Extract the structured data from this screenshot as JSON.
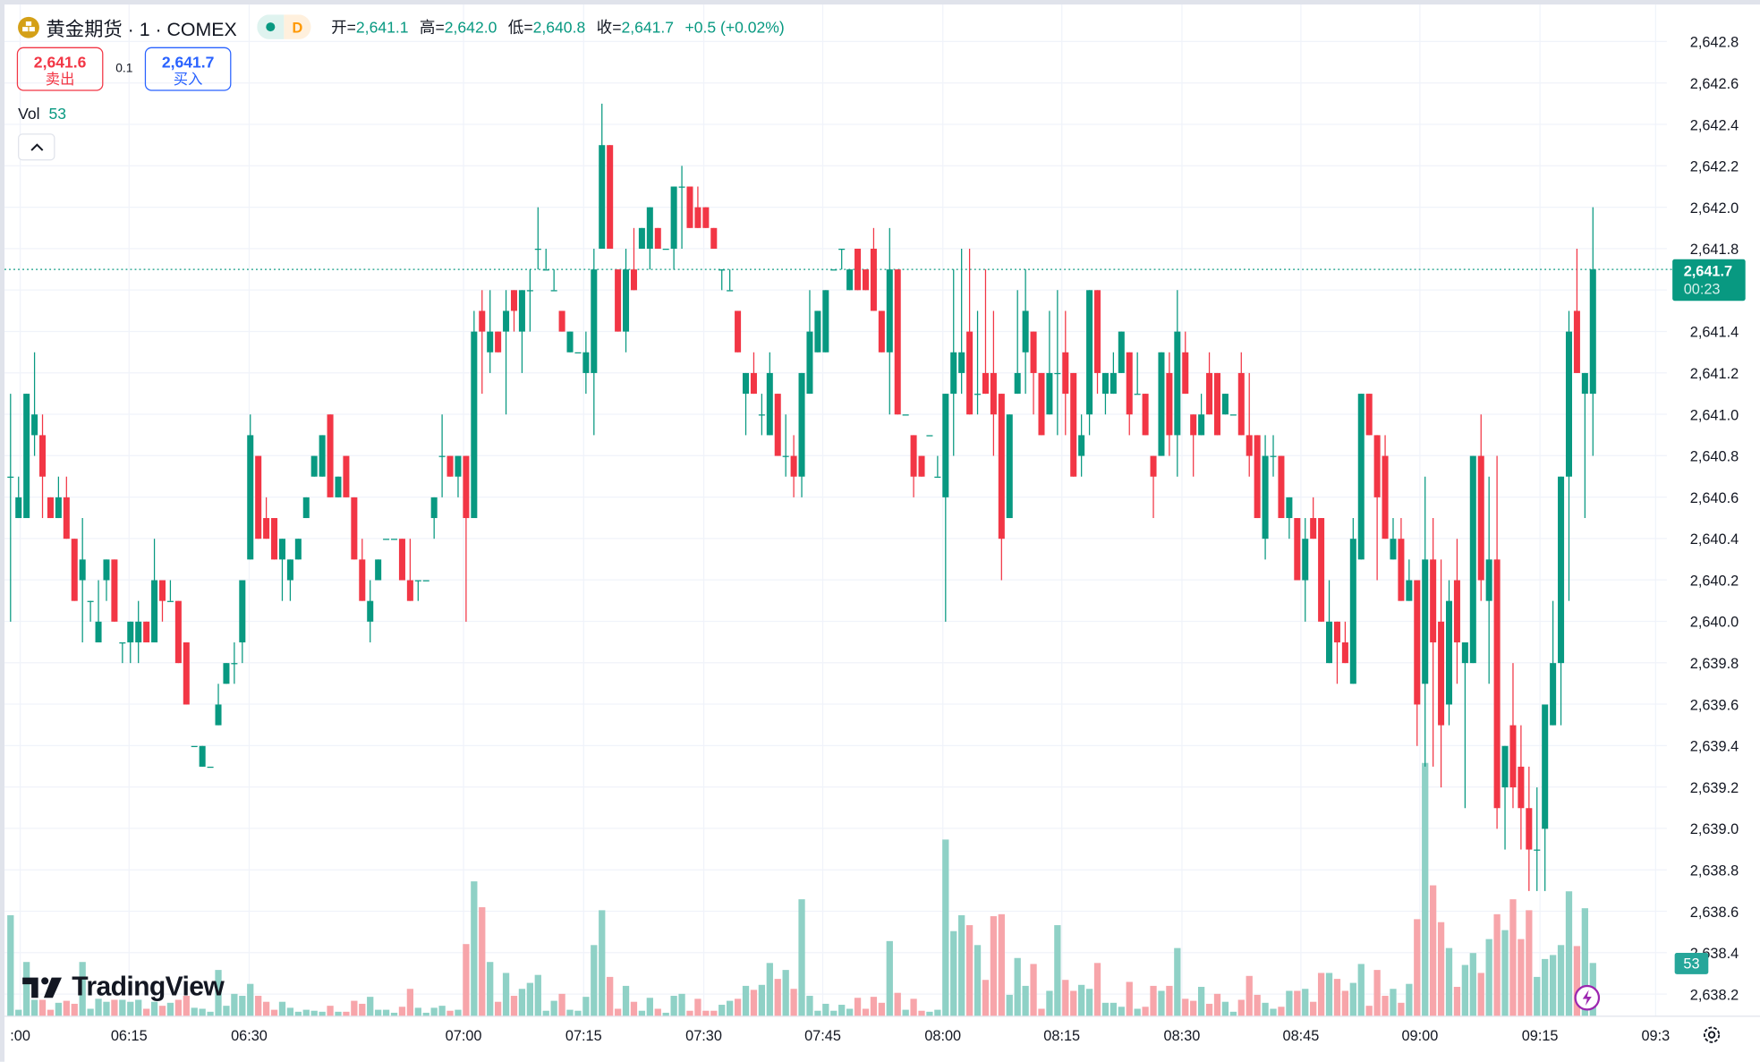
{
  "header": {
    "symbol": "黄金期货 · 1 · COMEX",
    "interval_badge": "D",
    "ohlc": {
      "open_label": "开=",
      "open": "2,641.1",
      "high_label": "高=",
      "high": "2,642.0",
      "low_label": "低=",
      "low": "2,640.8",
      "close_label": "收=",
      "close": "2,641.7",
      "change": "+0.5 (+0.02%)"
    }
  },
  "trade": {
    "sell_price": "2,641.6",
    "sell_label": "卖出",
    "spread": "0.1",
    "buy_price": "2,641.7",
    "buy_label": "买入"
  },
  "volume_legend": {
    "label": "Vol",
    "value": "53"
  },
  "logo_text": "TradingView",
  "price_badge": {
    "price": "2,641.7",
    "countdown": "00:23"
  },
  "volume_badge": "53",
  "icons": {
    "logo": "gold-bars-icon",
    "collapse": "chevron-up-icon",
    "settings": "gear-icon",
    "alert": "lightning-icon"
  },
  "colors": {
    "up": "#089981",
    "down": "#f23645",
    "up_volume": "#8fd1c6",
    "down_volume": "#f7a5aa",
    "sell": "#f23645",
    "buy": "#2962ff"
  },
  "chart_data": {
    "type": "candlestick",
    "interval": "1 minute",
    "ylim": [
      2638.1,
      2642.9
    ],
    "y_ticks": [
      "2,642.8",
      "2,642.6",
      "2,642.4",
      "2,642.2",
      "2,642.0",
      "2,641.8",
      "2,641.6",
      "2,641.4",
      "2,641.2",
      "2,641.0",
      "2,640.8",
      "2,640.6",
      "2,640.4",
      "2,640.2",
      "2,640.0",
      "2,639.8",
      "2,639.6",
      "2,639.4",
      "2,639.2",
      "2,639.0",
      "2,638.8",
      "2,638.6",
      "2,638.4",
      "2,638.2"
    ],
    "x_ticks": [
      ":00",
      "06:15",
      "06:30",
      "07:00",
      "07:15",
      "07:30",
      "07:45",
      "08:00",
      "08:15",
      "08:30",
      "08:45",
      "09:00",
      "09:15",
      "09:3"
    ],
    "last_price": 2641.7,
    "grid": true,
    "ohlc_fields": [
      "open",
      "high",
      "low",
      "close"
    ],
    "candles": [
      [
        2640.7,
        2641.1,
        2640.0,
        2640.7
      ],
      [
        2640.5,
        2640.7,
        2640.5,
        2640.6
      ],
      [
        2640.5,
        2641.1,
        2640.5,
        2641.1
      ],
      [
        2640.9,
        2641.3,
        2640.8,
        2641.0
      ],
      [
        2640.9,
        2641.0,
        2640.5,
        2640.7
      ],
      [
        2640.6,
        2640.6,
        2640.5,
        2640.5
      ],
      [
        2640.5,
        2640.7,
        2640.5,
        2640.6
      ],
      [
        2640.6,
        2640.7,
        2640.4,
        2640.4
      ],
      [
        2640.4,
        2640.4,
        2640.1,
        2640.1
      ],
      [
        2640.2,
        2640.5,
        2639.9,
        2640.3
      ],
      [
        2640.1,
        2640.1,
        2640.0,
        2640.1
      ],
      [
        2639.9,
        2640.2,
        2639.9,
        2640.0
      ],
      [
        2640.2,
        2640.3,
        2640.1,
        2640.3
      ],
      [
        2640.3,
        2640.3,
        2640.0,
        2640.0
      ],
      [
        2639.9,
        2639.9,
        2639.8,
        2639.9
      ],
      [
        2639.9,
        2640.0,
        2639.8,
        2640.0
      ],
      [
        2639.9,
        2640.1,
        2639.8,
        2640.0
      ],
      [
        2640.0,
        2640.0,
        2639.9,
        2639.9
      ],
      [
        2639.9,
        2640.4,
        2639.9,
        2640.2
      ],
      [
        2640.2,
        2640.2,
        2640.0,
        2640.1
      ],
      [
        2640.1,
        2640.2,
        2640.1,
        2640.1
      ],
      [
        2640.1,
        2640.1,
        2639.8,
        2639.8
      ],
      [
        2639.9,
        2639.9,
        2639.6,
        2639.6
      ],
      [
        2639.4,
        2639.4,
        2639.4,
        2639.4
      ],
      [
        2639.3,
        2639.4,
        2639.3,
        2639.4
      ],
      [
        2639.3,
        2639.3,
        2639.3,
        2639.3
      ],
      [
        2639.5,
        2639.7,
        2639.5,
        2639.6
      ],
      [
        2639.7,
        2639.8,
        2639.7,
        2639.8
      ],
      [
        2639.8,
        2639.9,
        2639.7,
        2639.8
      ],
      [
        2639.9,
        2640.2,
        2639.8,
        2640.2
      ],
      [
        2640.3,
        2641.0,
        2640.3,
        2640.9
      ],
      [
        2640.8,
        2640.8,
        2640.4,
        2640.4
      ],
      [
        2640.5,
        2640.6,
        2640.4,
        2640.4
      ],
      [
        2640.5,
        2640.5,
        2640.3,
        2640.3
      ],
      [
        2640.3,
        2640.4,
        2640.1,
        2640.4
      ],
      [
        2640.2,
        2640.3,
        2640.1,
        2640.3
      ],
      [
        2640.3,
        2640.4,
        2640.3,
        2640.4
      ],
      [
        2640.5,
        2640.6,
        2640.5,
        2640.6
      ],
      [
        2640.7,
        2640.8,
        2640.7,
        2640.8
      ],
      [
        2640.7,
        2640.9,
        2640.7,
        2640.9
      ],
      [
        2641.0,
        2641.0,
        2640.6,
        2640.6
      ],
      [
        2640.6,
        2640.7,
        2640.6,
        2640.7
      ],
      [
        2640.8,
        2640.8,
        2640.6,
        2640.6
      ],
      [
        2640.6,
        2640.6,
        2640.3,
        2640.3
      ],
      [
        2640.3,
        2640.4,
        2640.1,
        2640.1
      ],
      [
        2640.0,
        2640.2,
        2639.9,
        2640.1
      ],
      [
        2640.2,
        2640.3,
        2640.2,
        2640.3
      ],
      [
        2640.4,
        2640.4,
        2640.4,
        2640.4
      ],
      [
        2640.4,
        2640.4,
        2640.4,
        2640.4
      ],
      [
        2640.4,
        2640.4,
        2640.2,
        2640.2
      ],
      [
        2640.2,
        2640.4,
        2640.1,
        2640.1
      ],
      [
        2640.2,
        2640.2,
        2640.1,
        2640.2
      ],
      [
        2640.2,
        2640.2,
        2640.2,
        2640.2
      ],
      [
        2640.5,
        2640.6,
        2640.4,
        2640.6
      ],
      [
        2640.8,
        2641.0,
        2640.6,
        2640.8
      ],
      [
        2640.8,
        2640.8,
        2640.7,
        2640.7
      ],
      [
        2640.7,
        2640.8,
        2640.6,
        2640.8
      ],
      [
        2640.8,
        2640.8,
        2640.0,
        2640.5
      ],
      [
        2640.5,
        2641.5,
        2640.5,
        2641.4
      ],
      [
        2641.5,
        2641.6,
        2641.1,
        2641.4
      ],
      [
        2641.3,
        2641.6,
        2641.2,
        2641.4
      ],
      [
        2641.4,
        2641.4,
        2641.3,
        2641.3
      ],
      [
        2641.4,
        2641.6,
        2641.0,
        2641.5
      ],
      [
        2641.6,
        2641.6,
        2641.4,
        2641.5
      ],
      [
        2641.4,
        2641.6,
        2641.2,
        2641.6
      ],
      [
        2641.6,
        2641.7,
        2641.4,
        2641.6
      ],
      [
        2641.8,
        2642.0,
        2641.7,
        2641.8
      ],
      [
        2641.7,
        2641.8,
        2641.7,
        2641.7
      ],
      [
        2641.6,
        2641.7,
        2641.6,
        2641.6
      ],
      [
        2641.5,
        2641.5,
        2641.4,
        2641.4
      ],
      [
        2641.3,
        2641.4,
        2641.3,
        2641.4
      ],
      [
        2641.3,
        2641.3,
        2641.3,
        2641.3
      ],
      [
        2641.2,
        2641.4,
        2641.1,
        2641.3
      ],
      [
        2641.2,
        2641.8,
        2640.9,
        2641.7
      ],
      [
        2641.8,
        2642.5,
        2641.8,
        2642.3
      ],
      [
        2642.3,
        2642.3,
        2641.8,
        2641.8
      ],
      [
        2641.7,
        2641.7,
        2641.4,
        2641.4
      ],
      [
        2641.4,
        2641.8,
        2641.3,
        2641.7
      ],
      [
        2641.7,
        2641.9,
        2641.6,
        2641.6
      ],
      [
        2641.8,
        2641.9,
        2641.8,
        2641.9
      ],
      [
        2641.8,
        2642.0,
        2641.7,
        2642.0
      ],
      [
        2641.9,
        2641.9,
        2641.8,
        2641.8
      ],
      [
        2641.8,
        2641.8,
        2641.8,
        2641.8
      ],
      [
        2641.8,
        2642.1,
        2641.7,
        2642.1
      ],
      [
        2642.1,
        2642.2,
        2641.8,
        2642.1
      ],
      [
        2642.1,
        2642.1,
        2641.9,
        2641.9
      ],
      [
        2642.0,
        2642.1,
        2641.9,
        2641.9
      ],
      [
        2642.0,
        2642.0,
        2641.9,
        2641.9
      ],
      [
        2641.9,
        2641.9,
        2641.8,
        2641.8
      ],
      [
        2641.7,
        2641.7,
        2641.6,
        2641.7
      ],
      [
        2641.6,
        2641.7,
        2641.6,
        2641.6
      ],
      [
        2641.5,
        2641.5,
        2641.3,
        2641.3
      ],
      [
        2641.1,
        2641.2,
        2640.9,
        2641.2
      ],
      [
        2641.2,
        2641.3,
        2641.1,
        2641.1
      ],
      [
        2641.0,
        2641.1,
        2640.9,
        2641.0
      ],
      [
        2640.9,
        2641.3,
        2640.9,
        2641.2
      ],
      [
        2641.1,
        2641.1,
        2640.8,
        2640.8
      ],
      [
        2640.8,
        2641.0,
        2640.7,
        2640.8
      ],
      [
        2640.8,
        2640.9,
        2640.6,
        2640.7
      ],
      [
        2640.7,
        2641.2,
        2640.6,
        2641.2
      ],
      [
        2641.1,
        2641.6,
        2641.1,
        2641.4
      ],
      [
        2641.3,
        2641.5,
        2641.3,
        2641.5
      ],
      [
        2641.3,
        2641.6,
        2641.3,
        2641.6
      ],
      [
        2641.7,
        2641.7,
        2641.7,
        2641.7
      ],
      [
        2641.8,
        2641.8,
        2641.7,
        2641.8
      ],
      [
        2641.6,
        2641.7,
        2641.6,
        2641.7
      ],
      [
        2641.8,
        2641.8,
        2641.6,
        2641.6
      ],
      [
        2641.7,
        2641.7,
        2641.6,
        2641.6
      ],
      [
        2641.8,
        2641.9,
        2641.5,
        2641.5
      ],
      [
        2641.5,
        2641.5,
        2641.3,
        2641.3
      ],
      [
        2641.3,
        2641.9,
        2641.0,
        2641.7
      ],
      [
        2641.7,
        2641.7,
        2641.0,
        2641.0
      ],
      [
        2641.0,
        2641.0,
        2641.0,
        2641.0
      ],
      [
        2640.9,
        2640.9,
        2640.6,
        2640.7
      ],
      [
        2640.8,
        2640.8,
        2640.7,
        2640.7
      ],
      [
        2640.9,
        2640.9,
        2640.9,
        2640.9
      ],
      [
        2640.7,
        2640.8,
        2640.7,
        2640.7
      ],
      [
        2640.6,
        2641.1,
        2640.0,
        2641.1
      ],
      [
        2641.1,
        2641.7,
        2640.8,
        2641.3
      ],
      [
        2641.2,
        2641.8,
        2641.1,
        2641.3
      ],
      [
        2641.4,
        2641.8,
        2641.0,
        2641.0
      ],
      [
        2641.1,
        2641.5,
        2641.0,
        2641.1
      ],
      [
        2641.2,
        2641.7,
        2641.1,
        2641.1
      ],
      [
        2641.2,
        2641.5,
        2640.8,
        2641.0
      ],
      [
        2641.1,
        2641.1,
        2640.2,
        2640.4
      ],
      [
        2640.5,
        2641.0,
        2640.5,
        2641.0
      ],
      [
        2641.1,
        2641.6,
        2641.1,
        2641.2
      ],
      [
        2641.3,
        2641.7,
        2641.1,
        2641.5
      ],
      [
        2641.4,
        2641.4,
        2641.0,
        2641.2
      ],
      [
        2641.2,
        2641.2,
        2640.9,
        2640.9
      ],
      [
        2641.0,
        2641.5,
        2641.0,
        2641.2
      ],
      [
        2641.2,
        2641.6,
        2640.9,
        2641.2
      ],
      [
        2641.3,
        2641.5,
        2640.9,
        2641.1
      ],
      [
        2641.2,
        2641.2,
        2640.7,
        2640.7
      ],
      [
        2640.8,
        2641.0,
        2640.7,
        2640.9
      ],
      [
        2641.0,
        2641.6,
        2640.9,
        2641.6
      ],
      [
        2641.6,
        2641.6,
        2641.1,
        2641.2
      ],
      [
        2641.1,
        2641.2,
        2641.0,
        2641.2
      ],
      [
        2641.1,
        2641.3,
        2641.1,
        2641.2
      ],
      [
        2641.2,
        2641.4,
        2641.2,
        2641.4
      ],
      [
        2641.3,
        2641.3,
        2640.9,
        2641.0
      ],
      [
        2641.1,
        2641.3,
        2641.1,
        2641.1
      ],
      [
        2641.1,
        2641.1,
        2640.9,
        2640.9
      ],
      [
        2640.8,
        2640.8,
        2640.5,
        2640.7
      ],
      [
        2640.8,
        2641.3,
        2640.8,
        2641.3
      ],
      [
        2641.2,
        2641.3,
        2640.8,
        2640.9
      ],
      [
        2640.9,
        2641.6,
        2640.7,
        2641.4
      ],
      [
        2641.3,
        2641.4,
        2641.1,
        2641.1
      ],
      [
        2641.0,
        2641.0,
        2640.7,
        2640.9
      ],
      [
        2640.9,
        2641.1,
        2640.9,
        2641.0
      ],
      [
        2641.2,
        2641.3,
        2641.0,
        2641.0
      ],
      [
        2641.2,
        2641.2,
        2640.9,
        2640.9
      ],
      [
        2641.0,
        2641.1,
        2641.0,
        2641.1
      ],
      [
        2641.0,
        2641.0,
        2641.0,
        2641.0
      ],
      [
        2641.2,
        2641.3,
        2640.9,
        2640.9
      ],
      [
        2640.9,
        2641.2,
        2640.7,
        2640.8
      ],
      [
        2640.9,
        2640.9,
        2640.5,
        2640.5
      ],
      [
        2640.4,
        2640.9,
        2640.3,
        2640.8
      ],
      [
        2640.8,
        2640.9,
        2640.7,
        2640.8
      ],
      [
        2640.8,
        2640.8,
        2640.5,
        2640.5
      ],
      [
        2640.5,
        2640.6,
        2640.4,
        2640.6
      ],
      [
        2640.5,
        2640.5,
        2640.2,
        2640.2
      ],
      [
        2640.2,
        2640.5,
        2640.0,
        2640.4
      ],
      [
        2640.5,
        2640.6,
        2640.4,
        2640.4
      ],
      [
        2640.5,
        2640.5,
        2640.0,
        2640.0
      ],
      [
        2639.8,
        2640.2,
        2639.8,
        2640.0
      ],
      [
        2640.0,
        2640.0,
        2639.7,
        2639.9
      ],
      [
        2639.9,
        2640.0,
        2639.8,
        2639.8
      ],
      [
        2639.7,
        2640.5,
        2639.7,
        2640.4
      ],
      [
        2640.3,
        2641.1,
        2640.3,
        2641.1
      ],
      [
        2641.1,
        2641.1,
        2640.9,
        2640.9
      ],
      [
        2640.9,
        2640.9,
        2640.2,
        2640.6
      ],
      [
        2640.8,
        2640.9,
        2640.4,
        2640.4
      ],
      [
        2640.3,
        2640.5,
        2640.3,
        2640.4
      ],
      [
        2640.4,
        2640.5,
        2640.1,
        2640.1
      ],
      [
        2640.1,
        2640.3,
        2640.1,
        2640.2
      ],
      [
        2640.2,
        2640.2,
        2639.4,
        2639.6
      ],
      [
        2639.7,
        2640.7,
        2639.3,
        2640.3
      ],
      [
        2640.3,
        2640.5,
        2639.3,
        2639.9
      ],
      [
        2640.0,
        2640.3,
        2639.2,
        2639.5
      ],
      [
        2639.6,
        2640.2,
        2639.5,
        2640.1
      ],
      [
        2640.2,
        2640.4,
        2639.7,
        2639.9
      ],
      [
        2639.8,
        2639.9,
        2639.1,
        2639.9
      ],
      [
        2639.8,
        2640.8,
        2639.8,
        2640.8
      ],
      [
        2640.8,
        2641.0,
        2640.1,
        2640.2
      ],
      [
        2640.1,
        2640.7,
        2639.7,
        2640.3
      ],
      [
        2640.3,
        2640.8,
        2639.0,
        2639.1
      ],
      [
        2639.2,
        2639.4,
        2638.9,
        2639.4
      ],
      [
        2639.5,
        2639.8,
        2639.1,
        2639.2
      ],
      [
        2639.3,
        2639.5,
        2638.9,
        2639.1
      ],
      [
        2639.1,
        2639.3,
        2638.7,
        2638.9
      ],
      [
        2638.9,
        2639.2,
        2638.7,
        2638.9
      ],
      [
        2639.0,
        2639.6,
        2638.7,
        2639.6
      ],
      [
        2639.5,
        2640.1,
        2639.5,
        2639.8
      ],
      [
        2639.8,
        2640.7,
        2639.5,
        2640.7
      ],
      [
        2640.7,
        2641.5,
        2640.1,
        2641.4
      ],
      [
        2641.5,
        2641.8,
        2641.2,
        2641.2
      ],
      [
        2641.1,
        2641.2,
        2640.5,
        2641.2
      ],
      [
        2641.1,
        2642.0,
        2640.8,
        2641.7
      ]
    ],
    "volumes": [
      101,
      6,
      54,
      16,
      16,
      6,
      13,
      15,
      12,
      54,
      7,
      17,
      14,
      16,
      16,
      14,
      16,
      7,
      14,
      10,
      13,
      16,
      20,
      8,
      7,
      4,
      46,
      10,
      22,
      20,
      32,
      20,
      14,
      6,
      14,
      8,
      4,
      6,
      5,
      4,
      10,
      4,
      4,
      15,
      12,
      19,
      6,
      6,
      3,
      9,
      27,
      8,
      3,
      8,
      10,
      5,
      6,
      72,
      135,
      109,
      54,
      14,
      43,
      20,
      27,
      33,
      41,
      5,
      15,
      22,
      6,
      5,
      19,
      71,
      106,
      39,
      7,
      30,
      14,
      5,
      18,
      7,
      3,
      20,
      22,
      5,
      17,
      5,
      5,
      11,
      15,
      17,
      30,
      26,
      31,
      53,
      37,
      46,
      27,
      117,
      20,
      5,
      12,
      5,
      11,
      7,
      18,
      7,
      19,
      13,
      75,
      23,
      6,
      17,
      5,
      4,
      6,
      177,
      85,
      101,
      91,
      71,
      36,
      100,
      102,
      21,
      58,
      30,
      52,
      7,
      25,
      91,
      36,
      25,
      31,
      27,
      53,
      13,
      13,
      9,
      34,
      7,
      9,
      30,
      25,
      30,
      68,
      17,
      15,
      29,
      12,
      22,
      14,
      4,
      16,
      40,
      21,
      13,
      7,
      9,
      25,
      25,
      27,
      14,
      43,
      43,
      37,
      25,
      33,
      52,
      10,
      46,
      20,
      27,
      13,
      32,
      97,
      254,
      131,
      94,
      68,
      29,
      51,
      63,
      43,
      77,
      102,
      86,
      117,
      77,
      106,
      39,
      57,
      61,
      71,
      125,
      70,
      108,
      53
    ]
  }
}
